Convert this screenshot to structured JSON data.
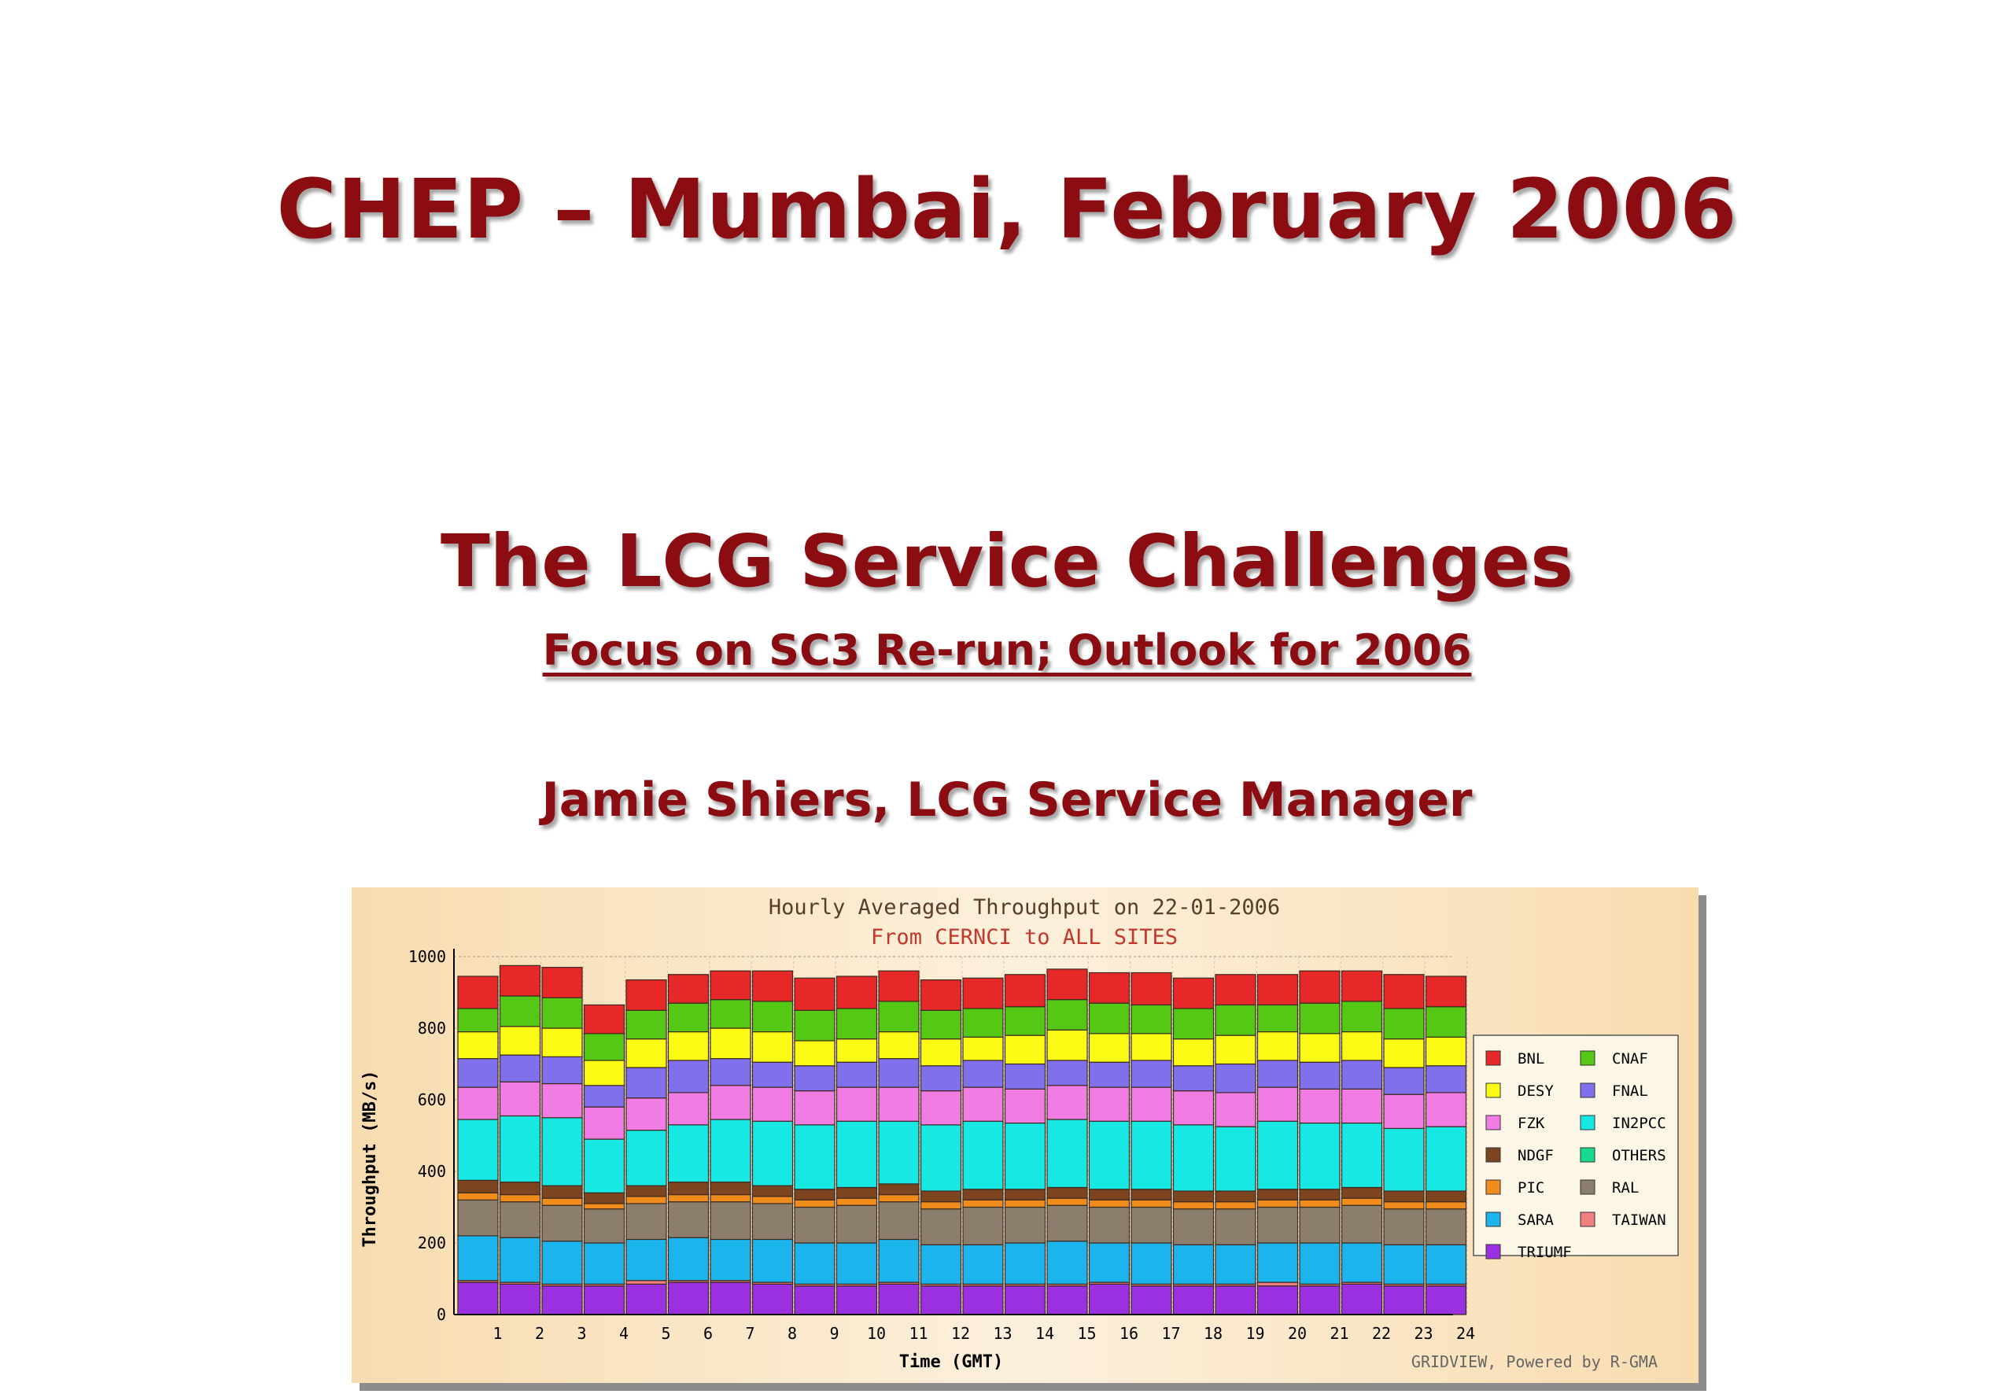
{
  "slide": {
    "conference": "CHEP – Mumbai, February 2006",
    "title": "The LCG Service Challenges",
    "subtitle": "Focus on SC3 Re-run; Outlook for 2006",
    "author": "Jamie Shiers, LCG Service Manager"
  },
  "chart_data": {
    "type": "bar",
    "stacked": true,
    "title": "Hourly Averaged Throughput on 22-01-2006",
    "subtitle": "From CERNCI to ALL SITES",
    "xlabel": "Time (GMT)",
    "ylabel": "Throughput (MB/s)",
    "ylim": [
      0,
      1000
    ],
    "yticks": [
      0,
      200,
      400,
      600,
      800,
      1000
    ],
    "grid": true,
    "legend_position": "right",
    "credit": "GRIDVIEW, Powered by R-GMA",
    "categories": [
      "1",
      "2",
      "3",
      "4",
      "5",
      "6",
      "7",
      "8",
      "9",
      "10",
      "11",
      "12",
      "13",
      "14",
      "15",
      "16",
      "17",
      "18",
      "19",
      "20",
      "21",
      "22",
      "23",
      "24"
    ],
    "series": [
      {
        "name": "TRIUMF",
        "color": "#9b30e0",
        "values": [
          90,
          85,
          80,
          80,
          85,
          90,
          90,
          85,
          80,
          80,
          85,
          80,
          80,
          80,
          80,
          85,
          80,
          80,
          80,
          80,
          80,
          85,
          80,
          80
        ]
      },
      {
        "name": "TAIWAN",
        "color": "#f08080",
        "values": [
          5,
          5,
          5,
          5,
          10,
          5,
          5,
          5,
          5,
          5,
          5,
          5,
          5,
          5,
          5,
          5,
          5,
          5,
          5,
          10,
          5,
          5,
          5,
          5
        ]
      },
      {
        "name": "SARA",
        "color": "#1cb4ec",
        "values": [
          125,
          125,
          120,
          115,
          115,
          120,
          115,
          120,
          115,
          115,
          120,
          110,
          110,
          115,
          120,
          110,
          115,
          110,
          110,
          110,
          115,
          110,
          110,
          110
        ]
      },
      {
        "name": "RAL",
        "color": "#8c7e6c",
        "values": [
          100,
          100,
          100,
          95,
          100,
          100,
          105,
          100,
          100,
          105,
          105,
          100,
          105,
          100,
          100,
          100,
          100,
          100,
          100,
          100,
          100,
          105,
          100,
          100
        ]
      },
      {
        "name": "PIC",
        "color": "#f08c1c",
        "values": [
          20,
          20,
          20,
          15,
          20,
          20,
          20,
          20,
          20,
          20,
          20,
          20,
          20,
          20,
          20,
          20,
          20,
          20,
          20,
          20,
          20,
          20,
          20,
          20
        ]
      },
      {
        "name": "NDGF",
        "color": "#7c4520",
        "values": [
          35,
          35,
          35,
          30,
          30,
          35,
          35,
          30,
          30,
          30,
          30,
          30,
          30,
          30,
          30,
          30,
          30,
          30,
          30,
          30,
          30,
          30,
          30,
          30
        ]
      },
      {
        "name": "OTHERS",
        "color": "#18d990",
        "values": [
          0,
          0,
          0,
          0,
          0,
          0,
          0,
          0,
          0,
          0,
          0,
          0,
          0,
          0,
          0,
          0,
          0,
          0,
          0,
          0,
          0,
          0,
          0,
          0
        ]
      },
      {
        "name": "IN2PCC",
        "color": "#18e8e4",
        "values": [
          170,
          185,
          190,
          150,
          155,
          160,
          175,
          180,
          180,
          185,
          175,
          185,
          190,
          185,
          190,
          190,
          190,
          185,
          180,
          190,
          185,
          180,
          175,
          180
        ]
      },
      {
        "name": "FZK",
        "color": "#f07ce4",
        "values": [
          90,
          95,
          95,
          90,
          90,
          90,
          95,
          95,
          95,
          95,
          95,
          95,
          95,
          95,
          95,
          95,
          95,
          95,
          95,
          95,
          95,
          95,
          95,
          95
        ]
      },
      {
        "name": "FNAL",
        "color": "#8070ec",
        "values": [
          80,
          75,
          75,
          60,
          85,
          90,
          75,
          70,
          70,
          70,
          80,
          70,
          75,
          70,
          70,
          70,
          75,
          70,
          80,
          75,
          75,
          80,
          75,
          75
        ]
      },
      {
        "name": "DESY",
        "color": "#fafa14",
        "values": [
          75,
          80,
          80,
          70,
          80,
          80,
          85,
          85,
          70,
          65,
          75,
          75,
          65,
          80,
          85,
          80,
          75,
          75,
          80,
          80,
          80,
          80,
          80,
          80
        ]
      },
      {
        "name": "CNAF",
        "color": "#54c814",
        "values": [
          65,
          85,
          85,
          75,
          80,
          80,
          80,
          85,
          85,
          85,
          85,
          80,
          80,
          80,
          85,
          85,
          80,
          85,
          85,
          75,
          85,
          85,
          85,
          85
        ]
      },
      {
        "name": "BNL",
        "color": "#e62828",
        "values": [
          90,
          85,
          85,
          80,
          85,
          80,
          80,
          85,
          90,
          90,
          85,
          85,
          85,
          90,
          85,
          85,
          90,
          85,
          85,
          85,
          90,
          85,
          95,
          85
        ]
      }
    ]
  }
}
